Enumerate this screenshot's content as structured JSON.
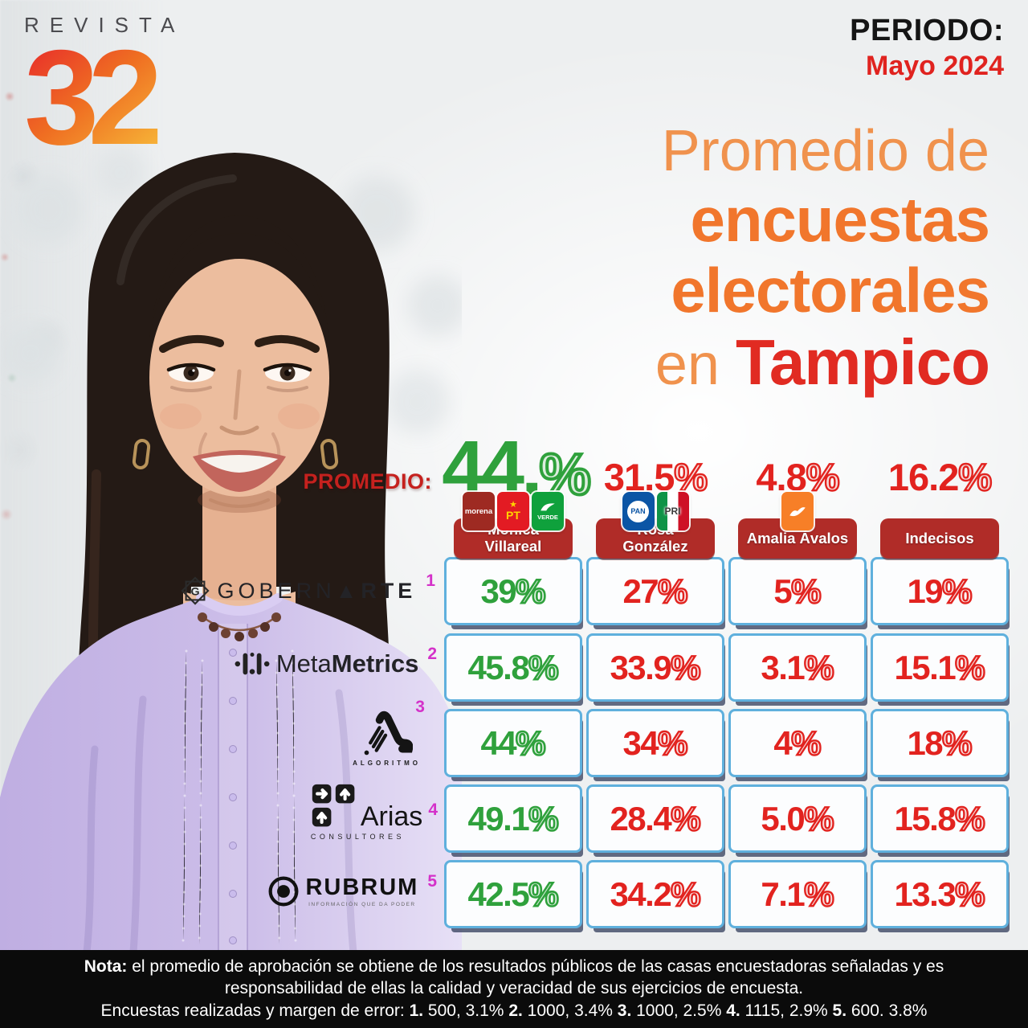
{
  "brand": {
    "name": "REVISTA",
    "number": "32"
  },
  "period": {
    "label": "PERIODO:",
    "value": "Mayo 2024"
  },
  "title": {
    "line1": "Promedio de",
    "line2": "encuestas",
    "line3": "electorales",
    "line4_light": "en ",
    "line4_bold": "Tampico"
  },
  "promedio": {
    "label": "PROMEDIO:",
    "values": [
      {
        "num": "44.",
        "sym": "%",
        "color": "green"
      },
      {
        "num": "31.5",
        "sym": "%",
        "color": "red"
      },
      {
        "num": "4.8",
        "sym": "%",
        "color": "red"
      },
      {
        "num": "16.2",
        "sym": "%",
        "color": "red"
      }
    ]
  },
  "party_labels": {
    "morena": "morena",
    "pt": "PT",
    "verde": "VERDE",
    "pan": "PAN",
    "pri": "PRI"
  },
  "candidates": [
    {
      "name": "Monica Villareal",
      "lines": [
        "Monica",
        "Villareal"
      ],
      "parties": [
        "morena",
        "pt",
        "verde"
      ]
    },
    {
      "name": "Rosa González",
      "lines": [
        "Rosa",
        "González"
      ],
      "parties": [
        "pan",
        "pri"
      ]
    },
    {
      "name": "Amalia Ávalos",
      "lines": [
        "Amalia Ávalos"
      ],
      "parties": [
        "mc"
      ]
    },
    {
      "name": "Indecisos",
      "lines": [
        "Indecisos"
      ],
      "parties": []
    }
  ],
  "pollsters": [
    {
      "name": "Gobernarte",
      "part1": "GOBERN",
      "tri": "▲",
      "part2": "RTE",
      "ref": "1"
    },
    {
      "name": "MetaMetrics",
      "meta": "Meta",
      "metrics": "Metrics",
      "ref": "2"
    },
    {
      "name": "Algoritmo",
      "caption": "ALGORITMO",
      "ref": "3"
    },
    {
      "name": "Arias Consultores",
      "word": "Arias",
      "caption": "CONSULTORES",
      "ref": "4"
    },
    {
      "name": "Rubrum",
      "word": "RUBRUM",
      "tagline": "INFORMACIÓN QUE DA PODER",
      "ref": "5"
    }
  ],
  "rows": [
    {
      "pollster": "Gobernarte",
      "values": [
        {
          "num": "39",
          "sym": "%"
        },
        {
          "num": "27",
          "sym": "%"
        },
        {
          "num": "5",
          "sym": "%"
        },
        {
          "num": "19",
          "sym": "%"
        }
      ]
    },
    {
      "pollster": "MetaMetrics",
      "values": [
        {
          "num": "45.8",
          "sym": "%"
        },
        {
          "num": "33.9",
          "sym": "%"
        },
        {
          "num": "3.1",
          "sym": "%"
        },
        {
          "num": "15.1",
          "sym": "%"
        }
      ]
    },
    {
      "pollster": "Algoritmo",
      "values": [
        {
          "num": "44",
          "sym": "%"
        },
        {
          "num": "34",
          "sym": "%"
        },
        {
          "num": "4",
          "sym": "%"
        },
        {
          "num": "18",
          "sym": "%"
        }
      ]
    },
    {
      "pollster": "Arias Consultores",
      "values": [
        {
          "num": "49.1",
          "sym": "%"
        },
        {
          "num": "28.4",
          "sym": "%"
        },
        {
          "num": "5.0",
          "sym": "%"
        },
        {
          "num": "15.8",
          "sym": "%"
        }
      ]
    },
    {
      "pollster": "Rubrum",
      "values": [
        {
          "num": "42.5",
          "sym": "%"
        },
        {
          "num": "34.2",
          "sym": "%"
        },
        {
          "num": "7.1",
          "sym": "%"
        },
        {
          "num": "13.3",
          "sym": "%"
        }
      ]
    }
  ],
  "footer": {
    "line1_bold": "Nota:",
    "line1_rest": " el promedio de aprobación se obtiene de los resultados públicos de las casas encuestadoras señaladas y es",
    "line2": "responsabilidad de ellas la calidad y veracidad de sus ejercicios de encuesta.",
    "line3_prefix": "Encuestas realizadas y margen de error: ",
    "line3_parts": [
      {
        "b": "1.",
        "t": " 500, 3.1% "
      },
      {
        "b": "2.",
        "t": " 1000, 3.4% "
      },
      {
        "b": "3.",
        "t": " 1000, 2.5% "
      },
      {
        "b": "4.",
        "t": " 1115, 2.9% "
      },
      {
        "b": "5.",
        "t": " 600. 3.8%"
      }
    ]
  },
  "colors": {
    "green": "#2fa13c",
    "red": "#e2231f",
    "plate_red": "#b02c28",
    "cell_border": "#5fb0dd",
    "orange": "#f1762c",
    "title_red": "#e12b22",
    "ref_magenta": "#d431c9"
  },
  "chart_data": {
    "type": "table",
    "title": "Promedio de encuestas electorales en Tampico",
    "period": "Mayo 2024",
    "columns": [
      "Monica Villareal",
      "Rosa González",
      "Amalia Ávalos",
      "Indecisos"
    ],
    "column_parties": [
      [
        "Morena",
        "PT",
        "Verde"
      ],
      [
        "PAN",
        "PRI"
      ],
      [
        "MC"
      ],
      []
    ],
    "promedio": [
      44.0,
      31.5,
      4.8,
      16.2
    ],
    "rows": [
      {
        "pollster": "Gobernarte",
        "note_ref": 1,
        "values": [
          39,
          27,
          5,
          19
        ]
      },
      {
        "pollster": "MetaMetrics",
        "note_ref": 2,
        "values": [
          45.8,
          33.9,
          3.1,
          15.1
        ]
      },
      {
        "pollster": "Algoritmo",
        "note_ref": 3,
        "values": [
          44,
          34,
          4,
          18
        ]
      },
      {
        "pollster": "Arias Consultores",
        "note_ref": 4,
        "values": [
          49.1,
          28.4,
          5.0,
          15.8
        ]
      },
      {
        "pollster": "Rubrum",
        "note_ref": 5,
        "values": [
          42.5,
          34.2,
          7.1,
          13.3
        ]
      }
    ],
    "sample_and_margin": [
      {
        "ref": 1,
        "n": 500,
        "margin_pct": 3.1
      },
      {
        "ref": 2,
        "n": 1000,
        "margin_pct": 3.4
      },
      {
        "ref": 3,
        "n": 1000,
        "margin_pct": 2.5
      },
      {
        "ref": 4,
        "n": 1115,
        "margin_pct": 2.9
      },
      {
        "ref": 5,
        "n": 600,
        "margin_pct": 3.8
      }
    ]
  }
}
